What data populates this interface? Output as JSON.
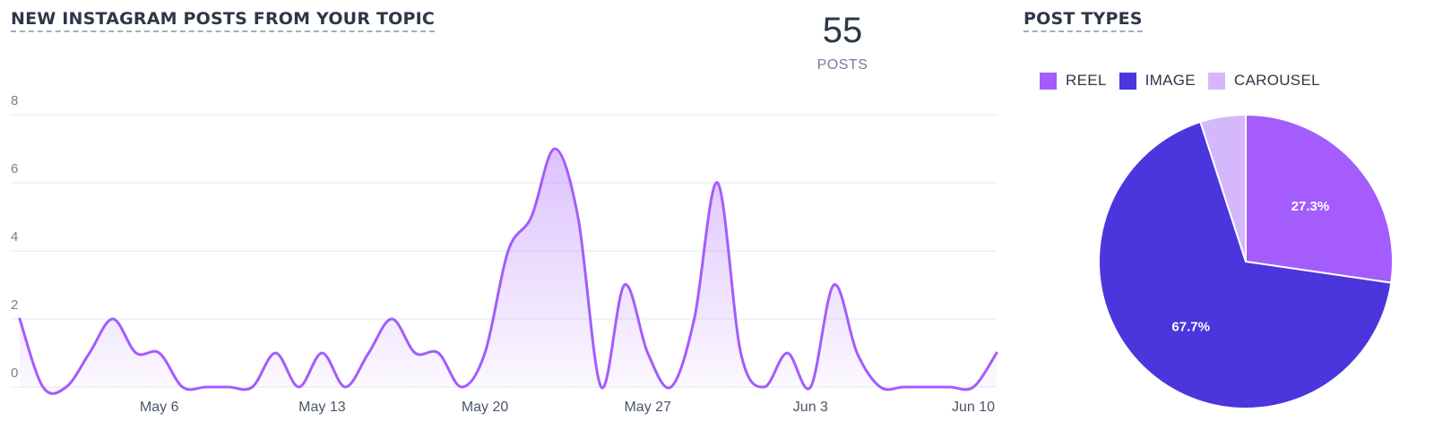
{
  "colors": {
    "reel": "#a45cfc",
    "image": "#4b35dd",
    "carousel": "#d5b8fb",
    "line": "#a45cfc"
  },
  "kpi": {
    "value": "55",
    "label": "POSTS"
  },
  "chart_data": [
    {
      "type": "area",
      "title": "NEW INSTAGRAM POSTS FROM YOUR TOPIC",
      "xlabel": "",
      "ylabel": "",
      "ylim": [
        0,
        8
      ],
      "yticks": [
        0,
        2,
        4,
        6,
        8
      ],
      "grid": true,
      "x_start": "Apr 30",
      "x_end": "Jun 11",
      "x_tick_labels": [
        "May 6",
        "May 13",
        "May 20",
        "May 27",
        "Jun 3",
        "Jun 10"
      ],
      "x": [
        "Apr 30",
        "May 1",
        "May 2",
        "May 3",
        "May 4",
        "May 5",
        "May 6",
        "May 7",
        "May 8",
        "May 9",
        "May 10",
        "May 11",
        "May 12",
        "May 13",
        "May 14",
        "May 15",
        "May 16",
        "May 17",
        "May 18",
        "May 19",
        "May 20",
        "May 21",
        "May 22",
        "May 23",
        "May 24",
        "May 25",
        "May 26",
        "May 27",
        "May 28",
        "May 29",
        "May 30",
        "May 31",
        "Jun 1",
        "Jun 2",
        "Jun 3",
        "Jun 4",
        "Jun 5",
        "Jun 6",
        "Jun 7",
        "Jun 8",
        "Jun 9",
        "Jun 10",
        "Jun 11"
      ],
      "values": [
        2,
        0,
        0,
        1,
        2,
        1,
        1,
        0,
        0,
        0,
        0,
        1,
        0,
        1,
        0,
        1,
        2,
        1,
        1,
        0,
        1,
        4,
        5,
        7,
        5,
        0,
        3,
        1,
        0,
        2,
        6,
        1,
        0,
        1,
        0,
        3,
        1,
        0,
        0,
        0,
        0,
        0,
        1
      ]
    },
    {
      "type": "pie",
      "title": "POST TYPES",
      "legend_position": "top",
      "slices": [
        {
          "name": "REEL",
          "value": 27.3,
          "label": "27.3%"
        },
        {
          "name": "IMAGE",
          "value": 67.7,
          "label": "67.7%"
        },
        {
          "name": "CAROUSEL",
          "value": 5.0,
          "label": ""
        }
      ]
    }
  ]
}
